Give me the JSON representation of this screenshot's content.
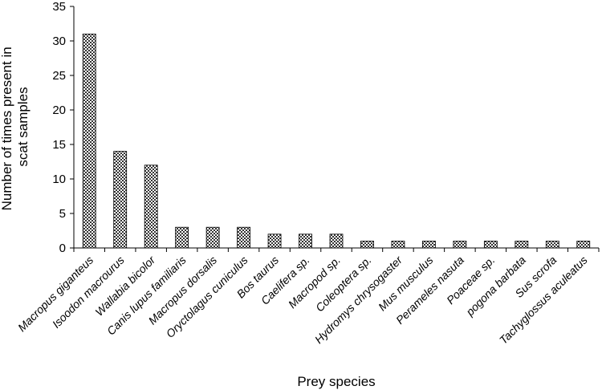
{
  "chart_data": {
    "type": "bar",
    "xlabel": "Prey species",
    "ylabel_lines": [
      "Number of times present in",
      "scat samples"
    ],
    "ylim": [
      0,
      35
    ],
    "yticks": [
      0,
      5,
      10,
      15,
      20,
      25,
      30,
      35
    ],
    "grid": false,
    "categories": [
      "Macropus giganteus",
      "Isoodon macrourus",
      "Wallabia bicolor",
      "Canis lupus familiaris",
      "Macropus dorsalis",
      "Oryctolagus cuniculus",
      "Bos taurus",
      "Caelifera sp.",
      "Macropod sp.",
      "Coleoptera sp.",
      "Hydromys chrysogaster",
      "Mus musculus",
      "Perameles nasuta",
      "Poaceae sp.",
      "pogona barbata",
      "Sus scrofa",
      "Tachyglossus aculeatus"
    ],
    "values": [
      31,
      14,
      12,
      3,
      3,
      3,
      2,
      2,
      2,
      1,
      1,
      1,
      1,
      1,
      1,
      1,
      1
    ]
  }
}
